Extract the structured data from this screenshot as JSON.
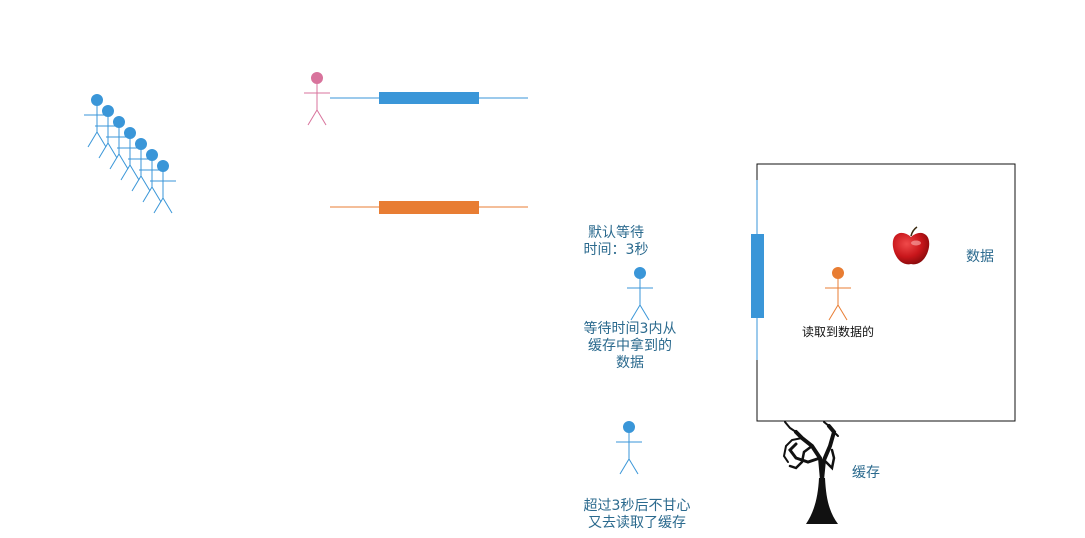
{
  "labels": {
    "default_wait": "默认等待\n时间：3秒",
    "got_from_cache": "等待时间3内从\n缓存中拿到的\n数据",
    "read_data": "读取到数据的",
    "data": "数据",
    "cache": "缓存",
    "over_3s": "超过3秒后不甘心\n又去读取了缓存"
  },
  "colors": {
    "blue": "#3a96d8",
    "orange": "#e87d33",
    "pink": "#d8739c",
    "label_text": "#2b6a8e",
    "black": "#111111",
    "apple_red": "#c8161b"
  },
  "icons": [
    "stick-figure-icon",
    "apple-icon",
    "tree-icon"
  ]
}
